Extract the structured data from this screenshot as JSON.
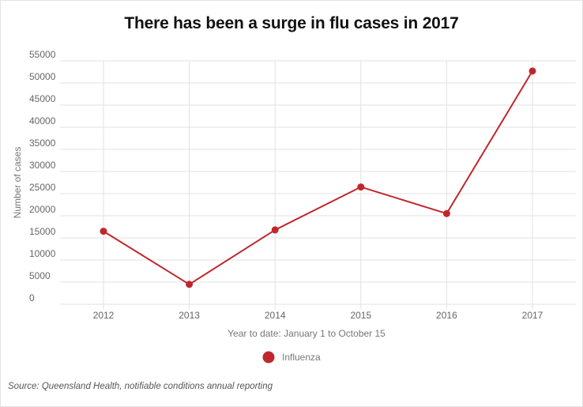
{
  "title": "There has been a surge in flu cases in 2017",
  "source": "Source: Queensland Health, notifiable conditions annual reporting",
  "colors": {
    "series": "#c0272d",
    "grid": "#e2e2e2",
    "text": "#666666"
  },
  "chart_data": {
    "type": "line",
    "title": "There has been a surge in flu cases in 2017",
    "xlabel": "Year to date: January 1 to October 15",
    "ylabel": "Number of cases",
    "categories": [
      "2012",
      "2013",
      "2014",
      "2015",
      "2016",
      "2017"
    ],
    "series": [
      {
        "name": "Influenza",
        "values": [
          16500,
          4500,
          16800,
          26500,
          20500,
          52700
        ]
      }
    ],
    "y_ticks": [
      "0",
      "5000",
      "10000",
      "15000",
      "20000",
      "25000",
      "30000",
      "35000",
      "40000",
      "45000",
      "50000",
      "55000"
    ],
    "ylim": [
      0,
      55000
    ],
    "grid": true,
    "legend_position": "bottom-center"
  }
}
